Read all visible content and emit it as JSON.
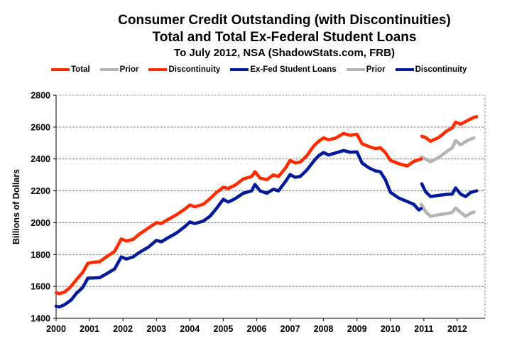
{
  "chart_data": {
    "type": "line",
    "title": "Consumer Credit Outstanding (with Discontinuities)",
    "subtitle": "Total and Total Ex-Federal Student Loans",
    "subtitle2": "To July 2012, NSA (ShadowStats.com, FRB)",
    "xlabel": "",
    "ylabel": "Billions of Dollars",
    "xlim": [
      2000,
      2012.83
    ],
    "ylim": [
      1400,
      2800
    ],
    "xticks": [
      "2000",
      "2001",
      "2002",
      "2003",
      "2004",
      "2005",
      "2006",
      "2007",
      "2008",
      "2009",
      "2010",
      "2011",
      "2012"
    ],
    "yticks": [
      "1400",
      "1600",
      "1800",
      "2000",
      "2200",
      "2400",
      "2600",
      "2800"
    ],
    "grid": true,
    "legend_position": "top",
    "series": [
      {
        "name": "Total",
        "color": "#ff2a00",
        "points": [
          [
            2000.0,
            1560
          ],
          [
            2000.1,
            1555
          ],
          [
            2000.25,
            1565
          ],
          [
            2000.4,
            1590
          ],
          [
            2000.6,
            1640
          ],
          [
            2000.8,
            1690
          ],
          [
            2000.95,
            1745
          ],
          [
            2001.1,
            1752
          ],
          [
            2001.3,
            1755
          ],
          [
            2001.5,
            1785
          ],
          [
            2001.75,
            1820
          ],
          [
            2001.95,
            1898
          ],
          [
            2002.1,
            1885
          ],
          [
            2002.3,
            1895
          ],
          [
            2002.5,
            1930
          ],
          [
            2002.75,
            1965
          ],
          [
            2003.0,
            2000
          ],
          [
            2003.15,
            1995
          ],
          [
            2003.3,
            2015
          ],
          [
            2003.6,
            2050
          ],
          [
            2003.85,
            2085
          ],
          [
            2004.0,
            2111
          ],
          [
            2004.15,
            2100
          ],
          [
            2004.4,
            2115
          ],
          [
            2004.6,
            2150
          ],
          [
            2004.8,
            2190
          ],
          [
            2005.0,
            2222
          ],
          [
            2005.15,
            2215
          ],
          [
            2005.35,
            2235
          ],
          [
            2005.6,
            2275
          ],
          [
            2005.85,
            2290
          ],
          [
            2005.95,
            2320
          ],
          [
            2006.1,
            2280
          ],
          [
            2006.3,
            2270
          ],
          [
            2006.5,
            2300
          ],
          [
            2006.65,
            2290
          ],
          [
            2006.85,
            2340
          ],
          [
            2007.0,
            2391
          ],
          [
            2007.15,
            2375
          ],
          [
            2007.3,
            2380
          ],
          [
            2007.5,
            2420
          ],
          [
            2007.7,
            2480
          ],
          [
            2007.85,
            2510
          ],
          [
            2008.0,
            2533
          ],
          [
            2008.15,
            2520
          ],
          [
            2008.35,
            2530
          ],
          [
            2008.6,
            2560
          ],
          [
            2008.8,
            2548
          ],
          [
            2009.0,
            2555
          ],
          [
            2009.15,
            2495
          ],
          [
            2009.4,
            2475
          ],
          [
            2009.55,
            2465
          ],
          [
            2009.7,
            2470
          ],
          [
            2009.85,
            2440
          ],
          [
            2010.0,
            2391
          ],
          [
            2010.25,
            2370
          ],
          [
            2010.5,
            2356
          ],
          [
            2010.7,
            2385
          ],
          [
            2010.92,
            2400
          ]
        ]
      },
      {
        "name": "Prior",
        "color": "#b4b4b4",
        "points": [
          [
            2010.92,
            2413
          ],
          [
            2011.05,
            2400
          ],
          [
            2011.2,
            2382
          ],
          [
            2011.45,
            2410
          ],
          [
            2011.7,
            2449
          ],
          [
            2011.85,
            2470
          ],
          [
            2011.95,
            2516
          ],
          [
            2012.1,
            2489
          ],
          [
            2012.3,
            2515
          ],
          [
            2012.5,
            2533
          ]
        ]
      },
      {
        "name": "Discontinuity",
        "color": "#ff2a00",
        "points": [
          [
            2010.94,
            2542
          ],
          [
            2011.05,
            2535
          ],
          [
            2011.2,
            2511
          ],
          [
            2011.45,
            2535
          ],
          [
            2011.7,
            2578
          ],
          [
            2011.85,
            2595
          ],
          [
            2011.95,
            2631
          ],
          [
            2012.1,
            2618
          ],
          [
            2012.3,
            2640
          ],
          [
            2012.5,
            2662
          ],
          [
            2012.58,
            2665
          ]
        ]
      },
      {
        "name": "Ex-Fed Student Loans",
        "color": "#001a99",
        "points": [
          [
            2000.0,
            1476
          ],
          [
            2000.1,
            1472
          ],
          [
            2000.25,
            1485
          ],
          [
            2000.45,
            1515
          ],
          [
            2000.6,
            1555
          ],
          [
            2000.8,
            1595
          ],
          [
            2000.95,
            1652
          ],
          [
            2001.1,
            1653
          ],
          [
            2001.3,
            1655
          ],
          [
            2001.5,
            1678
          ],
          [
            2001.75,
            1710
          ],
          [
            2001.95,
            1785
          ],
          [
            2002.1,
            1772
          ],
          [
            2002.3,
            1785
          ],
          [
            2002.5,
            1815
          ],
          [
            2002.75,
            1845
          ],
          [
            2003.0,
            1889
          ],
          [
            2003.15,
            1880
          ],
          [
            2003.3,
            1900
          ],
          [
            2003.6,
            1935
          ],
          [
            2003.85,
            1975
          ],
          [
            2004.0,
            2004
          ],
          [
            2004.15,
            1995
          ],
          [
            2004.4,
            2010
          ],
          [
            2004.6,
            2040
          ],
          [
            2004.8,
            2090
          ],
          [
            2005.0,
            2147
          ],
          [
            2005.15,
            2130
          ],
          [
            2005.35,
            2150
          ],
          [
            2005.6,
            2185
          ],
          [
            2005.85,
            2200
          ],
          [
            2005.95,
            2240
          ],
          [
            2006.1,
            2200
          ],
          [
            2006.3,
            2185
          ],
          [
            2006.5,
            2210
          ],
          [
            2006.65,
            2200
          ],
          [
            2006.85,
            2255
          ],
          [
            2007.0,
            2302
          ],
          [
            2007.15,
            2285
          ],
          [
            2007.3,
            2290
          ],
          [
            2007.5,
            2330
          ],
          [
            2007.7,
            2385
          ],
          [
            2007.85,
            2420
          ],
          [
            2008.0,
            2440
          ],
          [
            2008.15,
            2425
          ],
          [
            2008.35,
            2437
          ],
          [
            2008.6,
            2453
          ],
          [
            2008.8,
            2442
          ],
          [
            2009.0,
            2444
          ],
          [
            2009.15,
            2375
          ],
          [
            2009.35,
            2345
          ],
          [
            2009.55,
            2325
          ],
          [
            2009.7,
            2320
          ],
          [
            2009.85,
            2270
          ],
          [
            2010.0,
            2191
          ],
          [
            2010.25,
            2155
          ],
          [
            2010.5,
            2133
          ],
          [
            2010.7,
            2115
          ],
          [
            2010.85,
            2080
          ],
          [
            2010.92,
            2089
          ]
        ]
      },
      {
        "name": "Prior",
        "color": "#b4b4b4",
        "points": [
          [
            2010.92,
            2116
          ],
          [
            2011.05,
            2070
          ],
          [
            2011.2,
            2040
          ],
          [
            2011.45,
            2050
          ],
          [
            2011.7,
            2058
          ],
          [
            2011.85,
            2065
          ],
          [
            2011.95,
            2093
          ],
          [
            2012.1,
            2065
          ],
          [
            2012.25,
            2040
          ],
          [
            2012.4,
            2060
          ],
          [
            2012.5,
            2067
          ]
        ]
      },
      {
        "name": "Discontinuity",
        "color": "#001a99",
        "points": [
          [
            2010.94,
            2244
          ],
          [
            2011.05,
            2195
          ],
          [
            2011.2,
            2164
          ],
          [
            2011.45,
            2172
          ],
          [
            2011.7,
            2178
          ],
          [
            2011.85,
            2180
          ],
          [
            2011.95,
            2218
          ],
          [
            2012.1,
            2180
          ],
          [
            2012.25,
            2164
          ],
          [
            2012.4,
            2190
          ],
          [
            2012.58,
            2200
          ]
        ]
      }
    ]
  }
}
